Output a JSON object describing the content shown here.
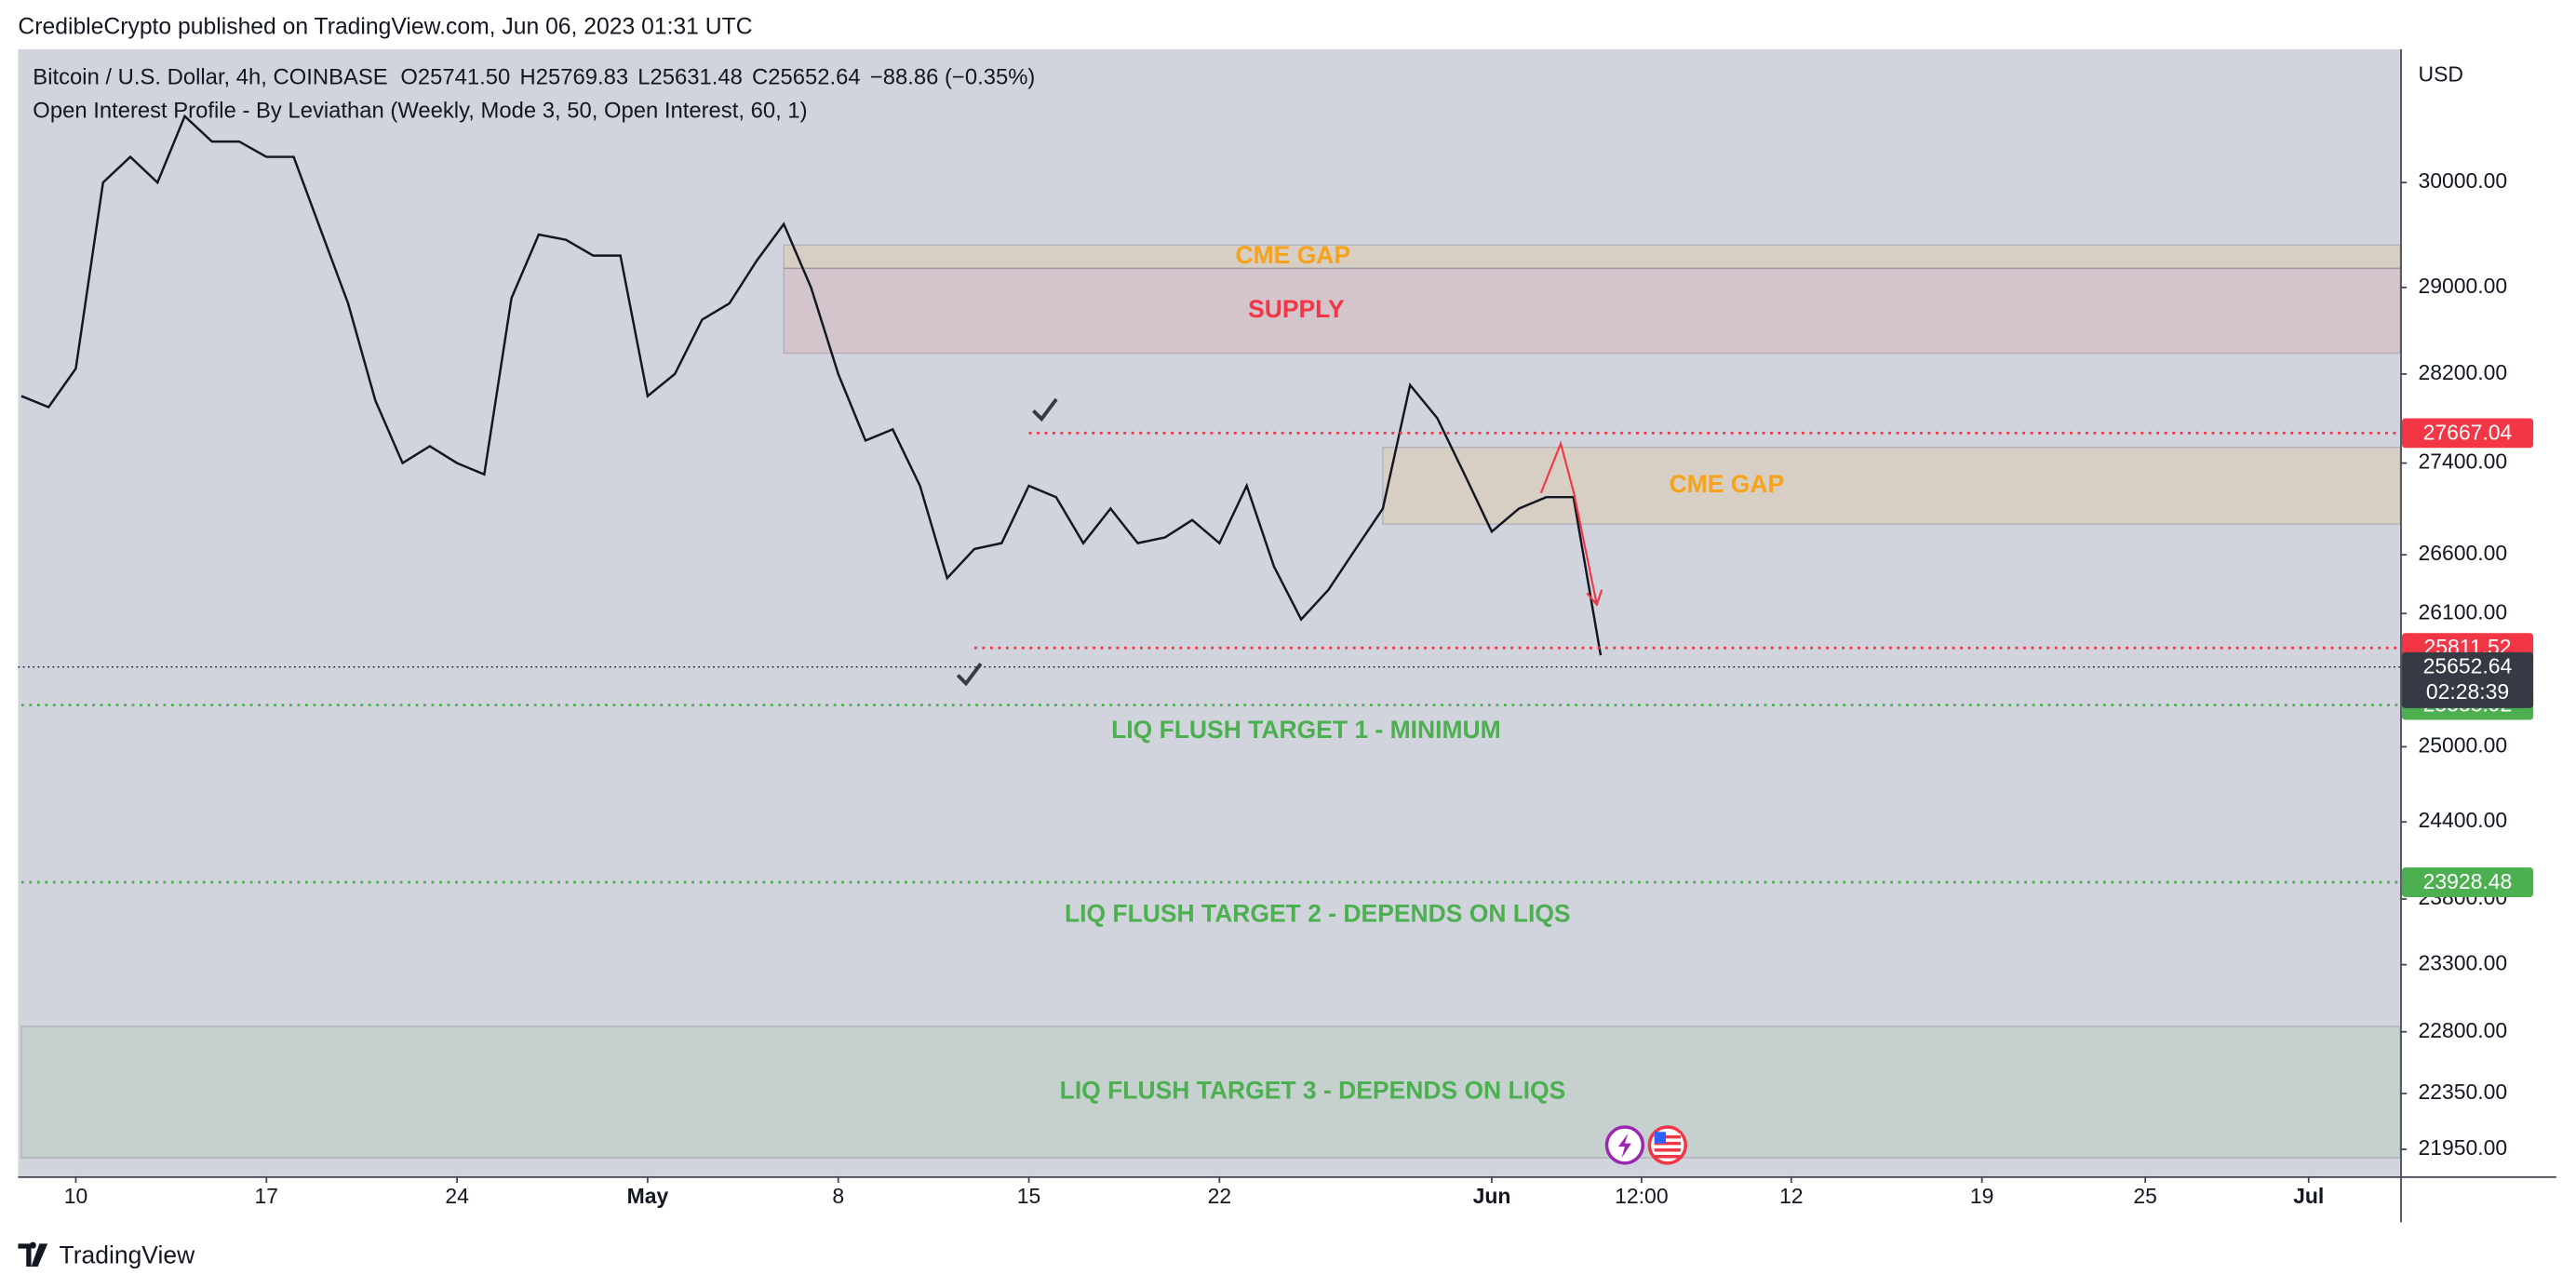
{
  "header": "CredibleCrypto published on TradingView.com, Jun 06, 2023 01:31 UTC",
  "legend": {
    "symbol": "Bitcoin / U.S. Dollar, 4h, COINBASE",
    "ohlc": [
      {
        "key": "O",
        "value": "25741.50"
      },
      {
        "key": "H",
        "value": "25769.83"
      },
      {
        "key": "L",
        "value": "25631.48"
      },
      {
        "key": "C",
        "value": "25652.64"
      }
    ],
    "change": "−88.86 (−0.35%)",
    "indicator": "Open Interest Profile - By Leviathan (Weekly, Mode 3, 50, Open Interest, 60, 1)"
  },
  "chart_data": {
    "type": "line",
    "currency": "USD",
    "log_scale": true,
    "xlim": [
      "2023-04-08",
      "2023-07-04"
    ],
    "ylim": [
      21760,
      31320
    ],
    "xticks": [
      {
        "value": "2023-04-10",
        "label": "10"
      },
      {
        "value": "2023-04-17",
        "label": "17"
      },
      {
        "value": "2023-04-24",
        "label": "24"
      },
      {
        "value": "2023-05-01",
        "label": "May"
      },
      {
        "value": "2023-05-08",
        "label": "8"
      },
      {
        "value": "2023-05-15",
        "label": "15"
      },
      {
        "value": "2023-05-22",
        "label": "22"
      },
      {
        "value": "2023-06-01",
        "label": "Jun"
      },
      {
        "value": "2023-06-06T12:00",
        "label": "12:00"
      },
      {
        "value": "2023-06-12",
        "label": "12"
      },
      {
        "value": "2023-06-19",
        "label": "19"
      },
      {
        "value": "2023-06-25",
        "label": "25"
      },
      {
        "value": "2023-07-01",
        "label": "Jul"
      }
    ],
    "yticks": [
      {
        "value": 30000,
        "label": "30000.00"
      },
      {
        "value": 29000,
        "label": "29000.00"
      },
      {
        "value": 28200,
        "label": "28200.00"
      },
      {
        "value": 27400,
        "label": "27400.00"
      },
      {
        "value": 26600,
        "label": "26600.00"
      },
      {
        "value": 26100,
        "label": "26100.00"
      },
      {
        "value": 25000,
        "label": "25000.00"
      },
      {
        "value": 24400,
        "label": "24400.00"
      },
      {
        "value": 23800,
        "label": "23800.00"
      },
      {
        "value": 23300,
        "label": "23300.00"
      },
      {
        "value": 22800,
        "label": "22800.00"
      },
      {
        "value": 22350,
        "label": "22350.00"
      },
      {
        "value": 21950,
        "label": "21950.00"
      }
    ],
    "series": [
      {
        "name": "Bitcoin / U.S. Dollar",
        "color": "#131722",
        "x": [
          "2023-04-08",
          "2023-04-09",
          "2023-04-10",
          "2023-04-11",
          "2023-04-12",
          "2023-04-13",
          "2023-04-14",
          "2023-04-15",
          "2023-04-16",
          "2023-04-17",
          "2023-04-18",
          "2023-04-19",
          "2023-04-20",
          "2023-04-21",
          "2023-04-22",
          "2023-04-23",
          "2023-04-24",
          "2023-04-25",
          "2023-04-26",
          "2023-04-27",
          "2023-04-28",
          "2023-04-29",
          "2023-04-30",
          "2023-05-01",
          "2023-05-02",
          "2023-05-03",
          "2023-05-04",
          "2023-05-05",
          "2023-05-06",
          "2023-05-07",
          "2023-05-08",
          "2023-05-09",
          "2023-05-10",
          "2023-05-11",
          "2023-05-12",
          "2023-05-13",
          "2023-05-14",
          "2023-05-15",
          "2023-05-16",
          "2023-05-17",
          "2023-05-18",
          "2023-05-19",
          "2023-05-20",
          "2023-05-21",
          "2023-05-22",
          "2023-05-23",
          "2023-05-24",
          "2023-05-25",
          "2023-05-26",
          "2023-05-27",
          "2023-05-28",
          "2023-05-29",
          "2023-05-30",
          "2023-05-31",
          "2023-06-01",
          "2023-06-02",
          "2023-06-03",
          "2023-06-04",
          "2023-06-05"
        ],
        "values": [
          28000,
          27900,
          28250,
          30000,
          30250,
          30000,
          30650,
          30400,
          30400,
          30250,
          30250,
          29540,
          28850,
          27960,
          27400,
          27550,
          27400,
          27300,
          28900,
          29500,
          29450,
          29300,
          29300,
          28000,
          28200,
          28700,
          28850,
          29250,
          29600,
          29000,
          28200,
          27600,
          27700,
          27200,
          26400,
          26650,
          26700,
          27200,
          27100,
          26700,
          27000,
          26700,
          26750,
          26900,
          26700,
          27200,
          26500,
          26050,
          26300,
          26650,
          27000,
          28100,
          27800,
          27300,
          26800,
          27000,
          27100,
          27100,
          25750
        ]
      }
    ],
    "zones": [
      {
        "label": "CME GAP",
        "top": 29400,
        "bottom": 29180,
        "start": "2023-05-06",
        "color": "#f7a21b"
      },
      {
        "label": "SUPPLY",
        "top": 29180,
        "bottom": 28390,
        "start": "2023-05-06",
        "color": "#f23645"
      },
      {
        "label": "CME GAP",
        "top": 27540,
        "bottom": 26865,
        "start": "2023-05-28",
        "color": "#f7a21b"
      },
      {
        "label": "LIQ FLUSH TARGET 3 - DEPENDS ON LIQS",
        "top": 22840,
        "bottom": 21890,
        "start": "2023-04-08",
        "color": "#4caf50"
      }
    ],
    "levels": [
      {
        "price": 27667.04,
        "start": "2023-05-15",
        "color": "#f23645"
      },
      {
        "price": 25811.52,
        "start": "2023-05-13",
        "color": "#f23645"
      },
      {
        "price": 25338.92,
        "start": "2023-04-08",
        "color": "#4caf50",
        "label": "LIQ FLUSH TARGET 1 - MINIMUM"
      },
      {
        "price": 23928.48,
        "start": "2023-04-08",
        "color": "#4caf50",
        "label": "LIQ FLUSH TARGET 2 - DEPENDS ON LIQS"
      }
    ],
    "last_price": {
      "price": 25652.64,
      "countdown": "02:28:39",
      "color": "#363a45"
    }
  },
  "footer": "TradingView"
}
